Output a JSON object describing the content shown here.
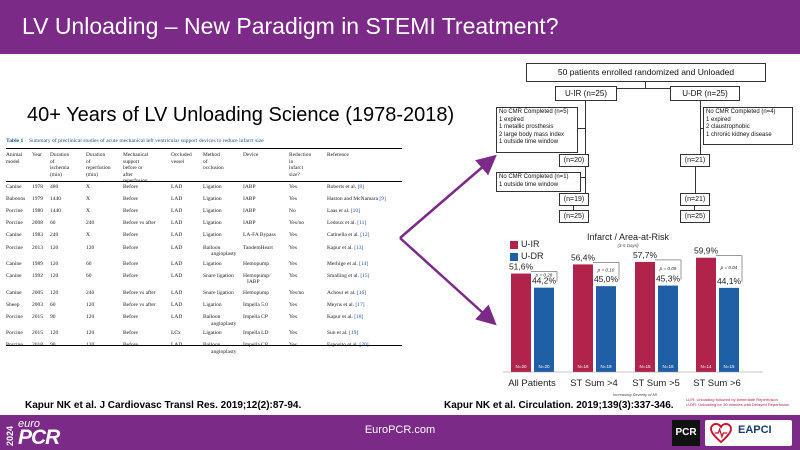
{
  "header": {
    "title": "LV Unloading – New Paradigm in STEMI Treatment?"
  },
  "subtitle": "40+ Years of LV Unloading Science (1978-2018)",
  "table": {
    "caption_label": "Table 1",
    "caption_text": "Summary of preclinical studies of acute mechanical left ventricular support devices to reduce infarct size",
    "headers": [
      "Animal\nmodel",
      "Year",
      "Duration of\nischemia\n(min)",
      "Duration of\nreperfusion\n(min)",
      "Mechanical\nsupport before or\nafter reperfusion",
      "Occluded\nvessel",
      "Method of\nocclusion",
      "Device",
      "Reduction in\ninfarct size?",
      "Reference"
    ],
    "rows": [
      [
        "Canine",
        "1978",
        "480",
        "X",
        "Before",
        "LAD",
        "Ligation",
        "IABP",
        "Yes",
        "Roberts et al.",
        "[8]"
      ],
      [
        "Baboons",
        "1979",
        "1440",
        "X",
        "Before",
        "LAD",
        "Ligation",
        "IABP",
        "Yes",
        "Haston and McNamara",
        "[9]"
      ],
      [
        "Porcine",
        "1980",
        "1440",
        "X",
        "Before",
        "LAD",
        "Ligation",
        "IABP",
        "No",
        "Laas et al.",
        "[10]"
      ],
      [
        "Porcine",
        "2008",
        "60",
        "240",
        "Before vs after",
        "LAD",
        "Ligation",
        "IABP",
        "Yes/no",
        "Ledoux et al.",
        "[11]"
      ],
      [
        "Canine",
        "1983",
        "240",
        "X",
        "Before",
        "LAD",
        "Ligation",
        "LA-FA Bypass",
        "Yes",
        "Catinella et al.",
        "[12]"
      ],
      [
        "Porcine",
        "2013",
        "120",
        "120",
        "Before",
        "LAD",
        "Balloon\nangioplasty",
        "TandemHeart",
        "Yes",
        "Kapur et al.",
        "[13]"
      ],
      [
        "Canine",
        "1989",
        "120",
        "60",
        "Before",
        "LAD",
        "Ligation",
        "Hemopump",
        "Yes",
        "Merhige et al.",
        "[14]"
      ],
      [
        "Canine",
        "1992",
        "120",
        "60",
        "Before",
        "LAD",
        "Snare ligation",
        "Hemopump/\nIABP",
        "Yes",
        "Smalling et al.",
        "[15]"
      ],
      [
        "Canine",
        "2005",
        "120",
        "240",
        "Before vs after",
        "LAD",
        "Snare ligation",
        "Hemopump",
        "Yes/no",
        "Achour et al.",
        "[16]"
      ],
      [
        "Sheep",
        "2003",
        "60",
        "120",
        "Before vs after",
        "LAD",
        "Ligation",
        "Impella 5.0",
        "Yes",
        "Meyns et al.",
        "[17]"
      ],
      [
        "Porcine",
        "2015",
        "90",
        "120",
        "Before",
        "LAD",
        "Balloon\nangioplasty",
        "Impella CP",
        "Yes",
        "Kapur et al.",
        "[18]"
      ],
      [
        "Porcine",
        "2015",
        "120",
        "120",
        "Before",
        "LCx",
        "Ligation",
        "Impella LD",
        "Yes",
        "Sun et al.",
        "[19]"
      ],
      [
        "Porcine",
        "2018",
        "90",
        "120",
        "Before",
        "LAD",
        "Balloon\nangioplasty",
        "Impella CP",
        "Yes",
        "Esposito et al.",
        "[20]"
      ]
    ]
  },
  "flow": {
    "top": "50 patients enrolled randomized and Unloaded",
    "uir": "U-IR (n=25)",
    "udr": "U-DR (n=25)",
    "left_excl1": "No CMR Completed (n=5)\n1 expired\n1 metallic prosthesis\n2 large body mass index\n1 outside time window",
    "right_excl1": "No CMR Completed (n=4)\n1 expired\n2 claustrophobic\n1 chronic kidney disease",
    "left_n1": "(n=20)",
    "right_n1": "(n=21)",
    "left_excl2": "No CMR Completed (n=1)\n1 outside time window",
    "left_n2": "(n=19)",
    "right_n2": "(n=21)",
    "left_n3": "(n=25)",
    "right_n3": "(n=25)"
  },
  "chart": {
    "legend_uir": "U-IR",
    "legend_udr": "U-DR",
    "xaxis_note": "Increasing Severity of MI",
    "footnote1": "U-IR: Unloading followed by immediate Reperfusion",
    "footnote2": "U-DR: Unloading for 30 minutes with Delayed Reperfusion"
  },
  "chart_data": {
    "type": "bar",
    "title": "Infarct / Area-at-Risk",
    "subtitle": "(3-5 Days)",
    "categories": [
      "All Patients",
      "ST Sum >4",
      "ST Sum >5",
      "ST Sum >6"
    ],
    "series": [
      {
        "name": "U-IR",
        "color": "#b0234a",
        "values": [
          51.6,
          56.4,
          57.7,
          59.9
        ],
        "labels": [
          "51,6%",
          "56,4%",
          "57,7%",
          "59,9%"
        ],
        "n": [
          "N=20",
          "N=16",
          "N=15",
          "N=14"
        ]
      },
      {
        "name": "U-DR",
        "color": "#1f5fa6",
        "values": [
          44.2,
          45.0,
          45.3,
          44.1
        ],
        "labels": [
          "44,2%",
          "45,0%",
          "45,3%",
          "44,1%"
        ],
        "n": [
          "N=20",
          "N=19",
          "N=18",
          "N=15"
        ]
      }
    ],
    "p_values": [
      "p = 0.28",
      "p = 0.10",
      "p = 0.09",
      "p = 0.04"
    ],
    "ylim": [
      0,
      65
    ],
    "xlabel": "Increasing Severity of MI",
    "ylabel": "",
    "legend": "top-left",
    "grid": false
  },
  "citations": {
    "left": "Kapur NK et al. J Cardiovasc Transl Res. 2019;12(2):87-94.",
    "right": "Kapur NK et al. Circulation. 2019;139(3):337-346."
  },
  "footer": {
    "year": "2024",
    "logo_euro": "euro",
    "logo_pcr": "PCR",
    "url": "EuroPCR.com",
    "pcr_badge": "PCR",
    "eapci": "EAPCI"
  },
  "colors": {
    "header": "#7b2a87",
    "uir": "#b0234a",
    "udr": "#1f5fa6",
    "arrow": "#7b2a87"
  }
}
